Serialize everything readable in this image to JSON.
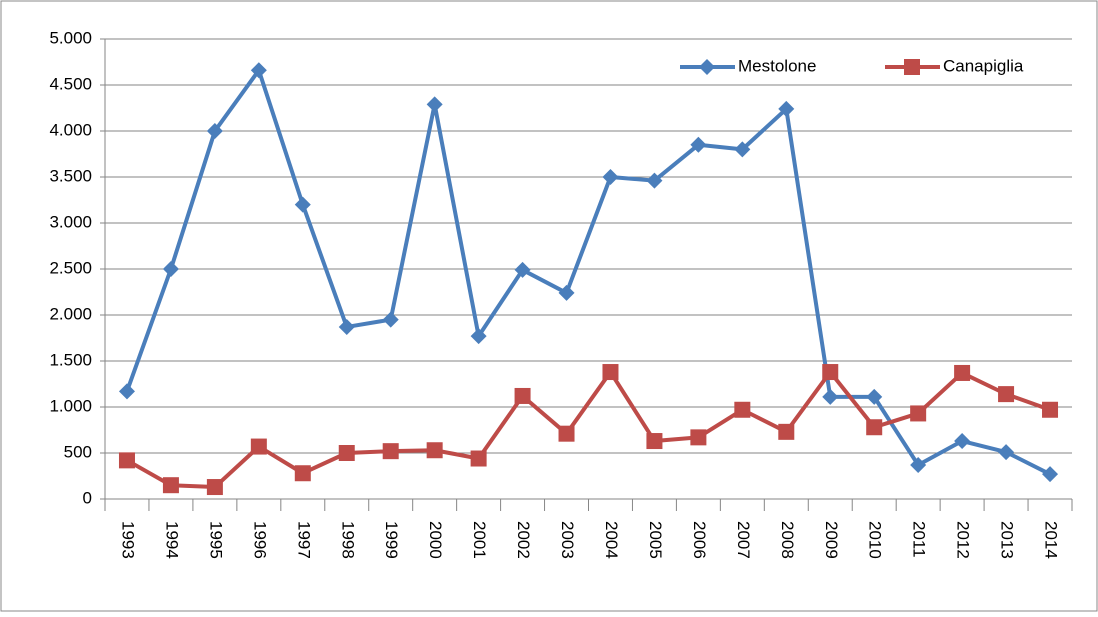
{
  "chart_data": {
    "type": "line",
    "categories": [
      "1993",
      "1994",
      "1995",
      "1996",
      "1997",
      "1998",
      "1999",
      "2000",
      "2001",
      "2002",
      "2003",
      "2004",
      "2005",
      "2006",
      "2007",
      "2008",
      "2009",
      "2010",
      "2011",
      "2012",
      "2013",
      "2014"
    ],
    "series": [
      {
        "name": "Mestolone",
        "color": "#4a7ebb",
        "marker": "diamond",
        "values": [
          1170,
          2500,
          4000,
          4660,
          3200,
          1870,
          1950,
          4290,
          1770,
          2490,
          2240,
          3500,
          3460,
          3850,
          3800,
          4240,
          1110,
          1110,
          370,
          630,
          510,
          270
        ]
      },
      {
        "name": "Canapiglia",
        "color": "#be4b48",
        "marker": "square",
        "values": [
          420,
          150,
          130,
          570,
          280,
          500,
          520,
          530,
          440,
          1120,
          710,
          1380,
          630,
          670,
          970,
          730,
          1380,
          780,
          930,
          1370,
          1140,
          970
        ]
      }
    ],
    "ylim": [
      0,
      5000
    ],
    "yticks": [
      0,
      500,
      {
        "value": 1000,
        "label": "1.000"
      },
      {
        "value": 1500,
        "label": "1.500"
      },
      {
        "value": 2000,
        "label": "2.000"
      },
      {
        "value": 2500,
        "label": "2.500"
      },
      {
        "value": 3000,
        "label": "3.000"
      },
      {
        "value": 3500,
        "label": "3.500"
      },
      {
        "value": 4000,
        "label": "4.000"
      },
      {
        "value": 4500,
        "label": "4.500"
      },
      {
        "value": 5000,
        "label": "5.000"
      }
    ],
    "grid": true,
    "legend": "upper right"
  }
}
